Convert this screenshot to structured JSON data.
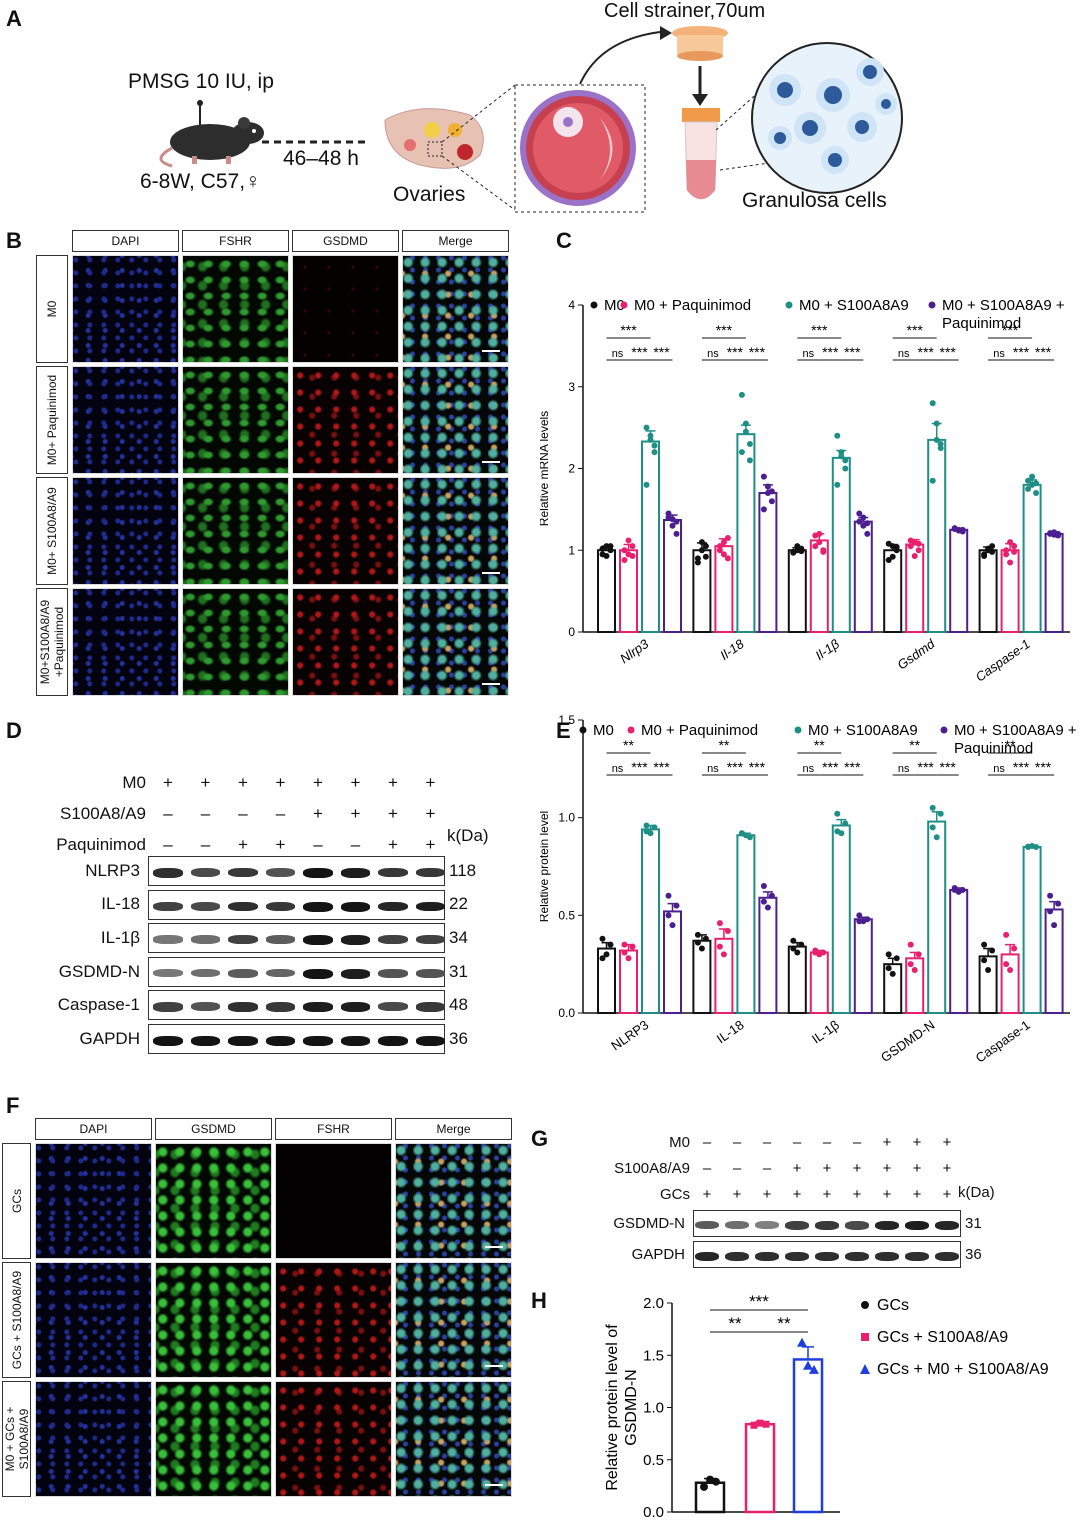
{
  "panelA": {
    "label": "A",
    "injection": "PMSG 10 IU, ip",
    "mouse": "6-8W, C57,♀",
    "interval": "46–48 h",
    "ovaries": "Ovaries",
    "strainer": "Cell strainer,70um",
    "cells": "Granulosa cells"
  },
  "panelB": {
    "label": "B",
    "headers": [
      "DAPI",
      "FSHR",
      "GSDMD",
      "Merge"
    ],
    "rows": [
      "M0",
      "M0+ Paquinimod",
      "M0+ S100A8/A9",
      "M0+S100A8/A9 +Paquinimod"
    ]
  },
  "panelF": {
    "label": "F",
    "headers": [
      "DAPI",
      "GSDMD",
      "FSHR",
      "Merge"
    ],
    "rows": [
      "GCs",
      "GCs + S100A8/A9",
      "M0 + GCs + S100A8/A9"
    ]
  },
  "panelD": {
    "label": "D",
    "conditions": [
      {
        "name": "M0",
        "signs": [
          "+",
          "+",
          "+",
          "+",
          "+",
          "+",
          "+",
          "+"
        ]
      },
      {
        "name": "S100A8/A9",
        "signs": [
          "–",
          "–",
          "–",
          "–",
          "+",
          "+",
          "+",
          "+"
        ]
      },
      {
        "name": "Paquinimod",
        "signs": [
          "–",
          "–",
          "+",
          "+",
          "–",
          "–",
          "+",
          "+"
        ]
      }
    ],
    "kda_label": "k(Da)",
    "blots": [
      {
        "name": "NLRP3",
        "kda": "118",
        "intensity": [
          0.85,
          0.7,
          0.8,
          0.65,
          1.0,
          0.95,
          0.8,
          0.8
        ]
      },
      {
        "name": "IL-18",
        "kda": "22",
        "intensity": [
          0.75,
          0.7,
          0.85,
          0.8,
          1.0,
          1.0,
          0.9,
          0.95
        ]
      },
      {
        "name": "IL-1β",
        "kda": "34",
        "intensity": [
          0.45,
          0.5,
          0.75,
          0.6,
          1.0,
          0.95,
          0.75,
          0.75
        ]
      },
      {
        "name": "GSDMD-N",
        "kda": "31",
        "intensity": [
          0.45,
          0.5,
          0.6,
          0.55,
          1.0,
          0.95,
          0.65,
          0.65
        ]
      },
      {
        "name": "Caspase-1",
        "kda": "48",
        "intensity": [
          0.75,
          0.65,
          0.85,
          0.8,
          0.95,
          0.95,
          0.7,
          0.8
        ]
      },
      {
        "name": "GAPDH",
        "kda": "36",
        "intensity": [
          1,
          1,
          1,
          1,
          1,
          1,
          1,
          1
        ]
      }
    ]
  },
  "panelG": {
    "label": "G",
    "conditions": [
      {
        "name": "M0",
        "signs": [
          "–",
          "–",
          "–",
          "–",
          "–",
          "–",
          "+",
          "+",
          "+"
        ]
      },
      {
        "name": "S100A8/A9",
        "signs": [
          "–",
          "–",
          "–",
          "+",
          "+",
          "+",
          "+",
          "+",
          "+"
        ]
      },
      {
        "name": "GCs",
        "signs": [
          "+",
          "+",
          "+",
          "+",
          "+",
          "+",
          "+",
          "+",
          "+"
        ]
      }
    ],
    "kda_label": "k(Da)",
    "blots": [
      {
        "name": "GSDMD-N",
        "kda": "31",
        "intensity": [
          0.6,
          0.5,
          0.4,
          0.75,
          0.8,
          0.7,
          0.9,
          0.95,
          0.9
        ]
      },
      {
        "name": "GAPDH",
        "kda": "36",
        "intensity": [
          0.9,
          0.85,
          0.85,
          0.85,
          0.85,
          0.85,
          0.85,
          0.85,
          0.85
        ]
      }
    ]
  },
  "colors": {
    "m0": "#111111",
    "paquinimod": "#e8206e",
    "s100": "#1f8f86",
    "both": "#4b1f8f",
    "gcs": "#111111",
    "gcs_s100": "#e8206e",
    "gcs_m0_s100": "#1f3fdd"
  },
  "chart_data": [
    {
      "panel": "C",
      "type": "bar",
      "ylabel": "Relative mRNA levels",
      "ylim": [
        0,
        4
      ],
      "yticks": [
        "0",
        "1",
        "2",
        "3",
        "4"
      ],
      "categories": [
        "Nlrp3",
        "Il-18",
        "Il-1β",
        "Gsdmd",
        "Caspase-1"
      ],
      "legend": [
        "M0",
        "M0 + Paquinimod",
        "M0 + S100A8A9",
        "M0 + S100A8A9 + Paquinimod"
      ],
      "series": [
        {
          "name": "M0",
          "values": [
            1.0,
            1.0,
            1.0,
            1.0,
            1.0
          ]
        },
        {
          "name": "M0 + Paquinimod",
          "values": [
            1.0,
            1.05,
            1.12,
            1.07,
            1.0
          ]
        },
        {
          "name": "M0 + S100A8A9",
          "values": [
            2.33,
            2.42,
            2.13,
            2.35,
            1.8
          ]
        },
        {
          "name": "M0 + S100A8A9 + Paquinimod",
          "values": [
            1.37,
            1.7,
            1.35,
            1.25,
            1.2
          ]
        }
      ],
      "errors": [
        [
          0.05,
          0.09,
          0.03,
          0.07,
          0.04
        ],
        [
          0.07,
          0.09,
          0.08,
          0.06,
          0.08
        ],
        [
          0.13,
          0.11,
          0.09,
          0.2,
          0.06
        ],
        [
          0.06,
          0.1,
          0.05,
          0.02,
          0.02
        ]
      ],
      "points": [
        [
          [
            0.95,
            1.05,
            1.0,
            1.02,
            0.93,
            1.05
          ],
          [
            0.9,
            1.0,
            1.05,
            0.85,
            1.1,
            0.92
          ],
          [
            0.98,
            1.0,
            1.02,
            0.97,
            1.05,
            0.99
          ],
          [
            0.88,
            1.05,
            1.0,
            1.08,
            0.92,
            1.04
          ],
          [
            0.93,
            1.0,
            1.05,
            0.95,
            1.02,
            0.98
          ]
        ],
        [
          [
            1.0,
            0.95,
            1.05,
            0.88,
            1.12,
            0.93
          ],
          [
            1.0,
            1.1,
            0.9,
            1.05,
            0.95,
            1.15
          ],
          [
            1.05,
            1.2,
            1.0,
            1.18,
            1.1,
            0.98
          ],
          [
            1.05,
            1.1,
            1.0,
            1.12,
            0.93,
            1.08
          ],
          [
            1.0,
            0.85,
            1.05,
            0.95,
            1.1,
            0.98
          ]
        ],
        [
          [
            2.5,
            2.35,
            2.2,
            1.8,
            2.4,
            2.28
          ],
          [
            2.9,
            2.45,
            2.3,
            2.2,
            2.55,
            2.1
          ],
          [
            2.4,
            2.2,
            2.0,
            1.8,
            2.15,
            2.1
          ],
          [
            2.8,
            2.35,
            2.25,
            1.85,
            2.55,
            2.3
          ],
          [
            1.85,
            1.9,
            1.7,
            1.75,
            1.8,
            1.82
          ]
        ],
        [
          [
            1.45,
            1.3,
            1.2,
            1.4,
            1.38,
            1.35
          ],
          [
            1.9,
            1.7,
            1.6,
            1.5,
            1.78,
            1.72
          ],
          [
            1.45,
            1.3,
            1.2,
            1.35,
            1.4,
            1.33
          ],
          [
            1.27,
            1.25,
            1.23,
            1.26,
            1.24,
            1.25
          ],
          [
            1.2,
            1.22,
            1.18,
            1.21,
            1.19,
            1.2
          ]
        ]
      ],
      "significance": [
        {
          "from": 0,
          "to": 2,
          "level": 1,
          "text": "***"
        },
        {
          "from": 0,
          "to": 1,
          "level": 0,
          "text": "ns"
        },
        {
          "from": 1,
          "to": 2,
          "level": 0,
          "text": "***"
        },
        {
          "from": 2,
          "to": 3,
          "level": 0,
          "text": "***"
        }
      ]
    },
    {
      "panel": "E",
      "type": "bar",
      "ylabel": "Relative  protein level",
      "ylim": [
        0,
        1.5
      ],
      "yticks": [
        "0.0",
        "0.5",
        "1.0",
        "1.5"
      ],
      "categories": [
        "NLRP3",
        "IL-18",
        "IL-1β",
        "GSDMD-N",
        "Caspase-1"
      ],
      "legend": [
        "M0",
        "M0 + Paquinimod",
        "M0 + S100A8A9",
        "M0 + S100A8A9 + Paquinimod"
      ],
      "series": [
        {
          "name": "M0",
          "values": [
            0.33,
            0.37,
            0.34,
            0.25,
            0.29
          ]
        },
        {
          "name": "M0 + Paquinimod",
          "values": [
            0.32,
            0.38,
            0.31,
            0.28,
            0.3
          ]
        },
        {
          "name": "M0 + S100A8A9",
          "values": [
            0.94,
            0.91,
            0.96,
            0.98,
            0.85
          ]
        },
        {
          "name": "M0 + S100A8A9 + Paquinimod",
          "values": [
            0.52,
            0.59,
            0.48,
            0.63,
            0.53
          ]
        }
      ],
      "errors": [
        [
          0.03,
          0.03,
          0.02,
          0.03,
          0.04
        ],
        [
          0.03,
          0.05,
          0.01,
          0.03,
          0.05
        ],
        [
          0.02,
          0.01,
          0.03,
          0.05,
          0.005
        ],
        [
          0.04,
          0.03,
          0.01,
          0.01,
          0.04
        ]
      ],
      "points": [
        [
          [
            0.38,
            0.3,
            0.35,
            0.28
          ],
          [
            0.4,
            0.33,
            0.38,
            0.36
          ],
          [
            0.37,
            0.31,
            0.35,
            0.33
          ],
          [
            0.3,
            0.2,
            0.28,
            0.23
          ],
          [
            0.35,
            0.22,
            0.32,
            0.27
          ]
        ],
        [
          [
            0.35,
            0.28,
            0.34,
            0.31
          ],
          [
            0.46,
            0.3,
            0.42,
            0.34
          ],
          [
            0.32,
            0.3,
            0.31,
            0.31
          ],
          [
            0.35,
            0.22,
            0.3,
            0.25
          ],
          [
            0.4,
            0.22,
            0.33,
            0.25
          ]
        ],
        [
          [
            0.96,
            0.92,
            0.95,
            0.93
          ],
          [
            0.92,
            0.91,
            0.9,
            0.92
          ],
          [
            1.02,
            0.92,
            0.97,
            0.93
          ],
          [
            1.05,
            0.9,
            1.02,
            0.95
          ],
          [
            0.85,
            0.855,
            0.85,
            0.852
          ]
        ],
        [
          [
            0.6,
            0.45,
            0.55,
            0.5
          ],
          [
            0.65,
            0.54,
            0.6,
            0.57
          ],
          [
            0.5,
            0.47,
            0.48,
            0.47
          ],
          [
            0.64,
            0.62,
            0.63,
            0.63
          ],
          [
            0.6,
            0.45,
            0.56,
            0.52
          ]
        ]
      ],
      "significance": [
        {
          "from": 0,
          "to": 2,
          "level": 1,
          "text": "**"
        },
        {
          "from": 0,
          "to": 1,
          "level": 0,
          "text": "ns"
        },
        {
          "from": 1,
          "to": 2,
          "level": 0,
          "text": "***"
        },
        {
          "from": 2,
          "to": 3,
          "level": 0,
          "text": "***"
        }
      ]
    },
    {
      "panel": "H",
      "type": "bar",
      "ylabel": "Relative  protein level of GSDMD-N",
      "ylim": [
        0,
        2.0
      ],
      "yticks": [
        "0.0",
        "0.5",
        "1.0",
        "1.5",
        "2.0"
      ],
      "categories": [
        "GCs",
        "GCs + S100A8/A9",
        "GCs + M0 + S100A8/A9"
      ],
      "legend": [
        "GCs",
        "GCs + S100A8/A9",
        "GCs + M0 + S100A8/A9"
      ],
      "values": [
        0.28,
        0.84,
        1.46
      ],
      "errors": [
        0.04,
        0.02,
        0.12
      ],
      "points": [
        [
          0.24,
          0.31,
          0.29
        ],
        [
          0.83,
          0.85,
          0.84
        ],
        [
          1.62,
          1.4,
          1.36
        ]
      ],
      "significance": [
        {
          "from": 0,
          "to": 2,
          "level": 1,
          "text": "***"
        },
        {
          "from": 0,
          "to": 1,
          "level": 0,
          "text": "**"
        },
        {
          "from": 1,
          "to": 2,
          "level": 0,
          "text": "**"
        }
      ]
    }
  ]
}
